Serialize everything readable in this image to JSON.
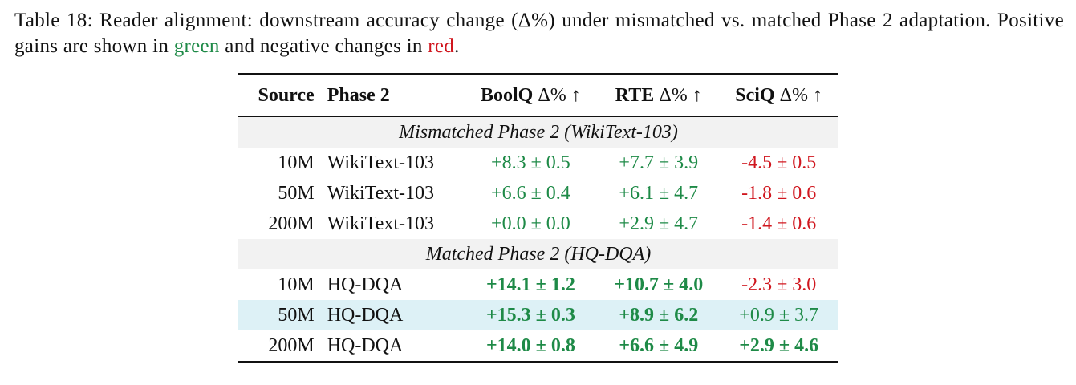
{
  "caption": {
    "parts": [
      "Table 18: Reader alignment: downstream accuracy change (Δ%) under mismatched vs. matched Phase 2 adaptation. Positive gains are shown in ",
      "green",
      " and negative changes in ",
      "red",
      "."
    ]
  },
  "table": {
    "header": [
      {
        "name": "Source"
      },
      {
        "name": "Phase 2"
      },
      {
        "name": "BoolQ",
        "unit": "Δ% ↑"
      },
      {
        "name": "RTE",
        "unit": "Δ% ↑"
      },
      {
        "name": "SciQ",
        "unit": "Δ% ↑"
      }
    ],
    "groups": [
      {
        "title": "Mismatched Phase 2 (WikiText-103)",
        "rows": [
          {
            "source": "10M",
            "phase": "WikiText-103",
            "cells": [
              {
                "mean": "+8.3",
                "error": "± 0.5",
                "color": "#1e8a47",
                "bold": false
              },
              {
                "mean": "+7.7",
                "error": "± 3.9",
                "color": "#1e8a47",
                "bold": false
              },
              {
                "mean": "-4.5",
                "error": "± 0.5",
                "color": "#d0161e",
                "bold": false
              }
            ]
          },
          {
            "source": "50M",
            "phase": "WikiText-103",
            "cells": [
              {
                "mean": "+6.6",
                "error": "± 0.4",
                "color": "#1e8a47",
                "bold": false
              },
              {
                "mean": "+6.1",
                "error": "± 4.7",
                "color": "#1e8a47",
                "bold": false
              },
              {
                "mean": "-1.8",
                "error": "± 0.6",
                "color": "#d0161e",
                "bold": false
              }
            ]
          },
          {
            "source": "200M",
            "phase": "WikiText-103",
            "cells": [
              {
                "mean": "+0.0",
                "error": "± 0.0",
                "color": "#1e8a47",
                "bold": false
              },
              {
                "mean": "+2.9",
                "error": "± 4.7",
                "color": "#1e8a47",
                "bold": false
              },
              {
                "mean": "-1.4",
                "error": "± 0.6",
                "color": "#d0161e",
                "bold": false
              }
            ]
          }
        ]
      },
      {
        "title": "Matched Phase 2 (HQ-DQA)",
        "rows": [
          {
            "source": "10M",
            "phase": "HQ-DQA",
            "cells": [
              {
                "mean": "+14.1",
                "error": "± 1.2",
                "color": "#1e8a47",
                "bold": true
              },
              {
                "mean": "+10.7",
                "error": "± 4.0",
                "color": "#1e8a47",
                "bold": true
              },
              {
                "mean": "-2.3",
                "error": "± 3.0",
                "color": "#d0161e",
                "bold": false
              }
            ]
          },
          {
            "source": "50M",
            "phase": "HQ-DQA",
            "highlight": true,
            "cells": [
              {
                "mean": "+15.3",
                "error": "± 0.3",
                "color": "#1e8a47",
                "bold": true
              },
              {
                "mean": "+8.9",
                "error": "± 6.2",
                "color": "#1e8a47",
                "bold": true
              },
              {
                "mean": "+0.9",
                "error": "± 3.7",
                "color": "#1e8a47",
                "bold": false
              }
            ]
          },
          {
            "source": "200M",
            "phase": "HQ-DQA",
            "cells": [
              {
                "mean": "+14.0",
                "error": "± 0.8",
                "color": "#1e8a47",
                "bold": true
              },
              {
                "mean": "+6.6",
                "error": "± 4.9",
                "color": "#1e8a47",
                "bold": true
              },
              {
                "mean": "+2.9",
                "error": "± 4.6",
                "color": "#1e8a47",
                "bold": true
              }
            ]
          }
        ]
      }
    ]
  }
}
